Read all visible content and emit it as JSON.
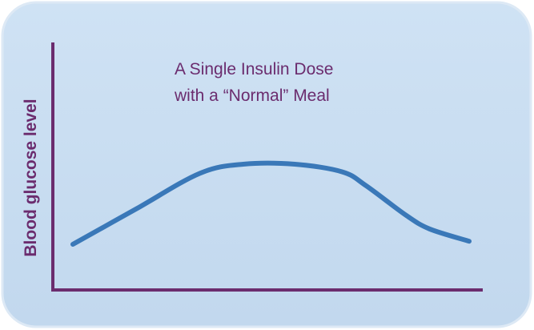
{
  "chart_data": {
    "type": "line",
    "title_lines": [
      "A Single Insulin Dose",
      "with a “Normal” Meal"
    ],
    "xlabel": "",
    "ylabel": "Blood glucose level",
    "xlim": [
      0,
      10
    ],
    "ylim": [
      0,
      10
    ],
    "grid": false,
    "legend": "none",
    "series": [
      {
        "x": [
          0,
          1.6,
          3.2,
          4.3,
          5.6,
          6.8,
          7.4,
          8.4,
          9.0,
          10
        ],
        "values": [
          1.1,
          3.4,
          5.7,
          6.3,
          6.3,
          5.8,
          4.9,
          3.0,
          2.1,
          1.3
        ],
        "color": "#3a78b8"
      }
    ]
  },
  "colors": {
    "card_fill": "#c6dcf0",
    "card_border": "#d8e6f3",
    "axis": "#6b2c6e",
    "text": "#6b2c6e",
    "line": "#3a78b8"
  }
}
